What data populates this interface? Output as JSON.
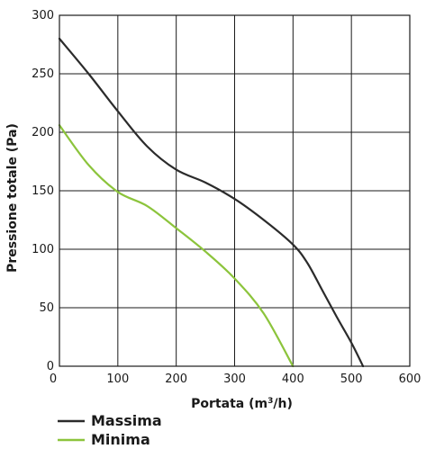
{
  "chart_data": {
    "type": "line",
    "title": "",
    "xlabel": "Portata (m",
    "xlabel_sup": "3",
    "xlabel_suffix": "/h)",
    "ylabel": "Pressione totale (Pa)",
    "xlim": [
      0,
      600
    ],
    "ylim": [
      0,
      300
    ],
    "x_ticks": [
      {
        "value": 0,
        "label": "0"
      },
      {
        "value": 100,
        "label": "100"
      },
      {
        "value": 200,
        "label": "200"
      },
      {
        "value": 300,
        "label": "300"
      },
      {
        "value": 400,
        "label": "400"
      },
      {
        "value": 500,
        "label": "500"
      },
      {
        "value": 600,
        "label": "600"
      }
    ],
    "y_ticks": [
      {
        "value": 0,
        "label": "0"
      },
      {
        "value": 50,
        "label": "50"
      },
      {
        "value": 100,
        "label": "100"
      },
      {
        "value": 150,
        "label": "150"
      },
      {
        "value": 200,
        "label": "200"
      },
      {
        "value": 250,
        "label": "250"
      },
      {
        "value": 300,
        "label": "300"
      }
    ],
    "grid": true,
    "legend_position": "bottom-left",
    "series": [
      {
        "name": "Massima",
        "color": "#2b2b2b",
        "x": [
          0,
          50,
          100,
          150,
          200,
          250,
          300,
          350,
          400,
          425,
          450,
          475,
          500,
          520
        ],
        "y": [
          280,
          250,
          218,
          188,
          168,
          157,
          143,
          125,
          104,
          88,
          65,
          42,
          20,
          0
        ]
      },
      {
        "name": "Minima",
        "color": "#8cc43c",
        "x": [
          0,
          50,
          100,
          150,
          200,
          250,
          300,
          350,
          400
        ],
        "y": [
          206,
          172,
          149,
          137,
          118,
          98,
          75,
          45,
          0
        ]
      }
    ]
  }
}
